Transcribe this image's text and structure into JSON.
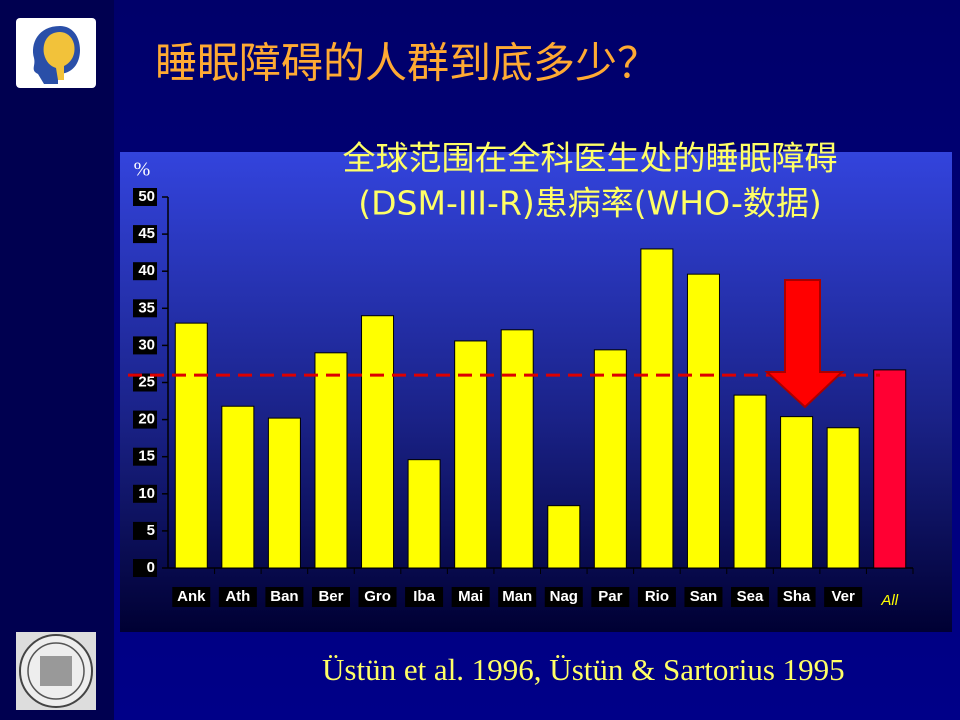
{
  "header": {
    "title": "睡眠障碍的人群到底多少？"
  },
  "chart_data": {
    "type": "bar",
    "title": "全球范围在全科医生处的睡眠障碍",
    "subtitle": "(DSM-III-R)患病率(WHO-数据)",
    "y_label": "%",
    "categories": [
      "Ank",
      "Ath",
      "Ban",
      "Ber",
      "Gro",
      "Iba",
      "Mai",
      "Man",
      "Nag",
      "Par",
      "Rio",
      "San",
      "Sea",
      "Sha",
      "Ver",
      "All"
    ],
    "values": [
      33,
      21.8,
      20.2,
      29,
      34,
      14.6,
      30.6,
      32.1,
      8.4,
      29.4,
      43,
      39.6,
      23.3,
      20.4,
      18.9,
      26.7
    ],
    "colors": [
      "#ffff00",
      "#ffff00",
      "#ffff00",
      "#ffff00",
      "#ffff00",
      "#ffff00",
      "#ffff00",
      "#ffff00",
      "#ffff00",
      "#ffff00",
      "#ffff00",
      "#ffff00",
      "#ffff00",
      "#ffff00",
      "#ffff00",
      "#ff0033"
    ],
    "ylim": [
      0,
      50
    ],
    "yticks": [
      0,
      5,
      10,
      15,
      20,
      25,
      30,
      35,
      40,
      45,
      50
    ],
    "reference_line": 26,
    "reference_color": "#dd0000"
  },
  "footer": {
    "citation": "Üstün et al. 1996, Üstün & Sartorius 1995"
  }
}
